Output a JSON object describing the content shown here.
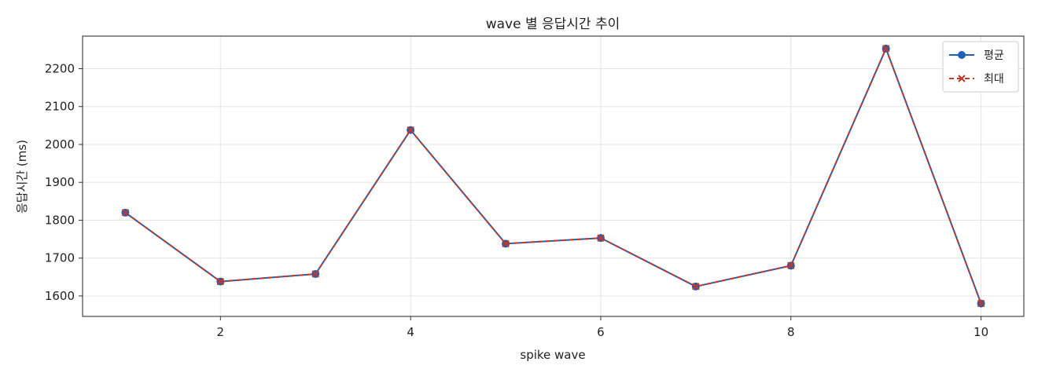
{
  "chart_data": {
    "type": "line",
    "title": "wave 별 응답시간 추이",
    "xlabel": "spike wave",
    "ylabel": "응답시간 (ms)",
    "x": [
      1,
      2,
      3,
      4,
      5,
      6,
      7,
      8,
      9,
      10
    ],
    "xlim": [
      0.55,
      10.45
    ],
    "ylim": [
      1546,
      2286
    ],
    "xticks": [
      2,
      4,
      6,
      8,
      10
    ],
    "yticks": [
      1600,
      1700,
      1800,
      1900,
      2000,
      2100,
      2200
    ],
    "grid": true,
    "legend_position": "top-right",
    "series": [
      {
        "name": "평균",
        "color": "#1f5fb4",
        "marker": "circle",
        "line_style": "solid",
        "values": [
          1820,
          1638,
          1658,
          2038,
          1738,
          1753,
          1625,
          1680,
          2253,
          1580
        ]
      },
      {
        "name": "최대",
        "color": "#c0392b",
        "marker": "x",
        "line_style": "dashed",
        "values": [
          1820,
          1638,
          1658,
          2038,
          1738,
          1753,
          1625,
          1680,
          2253,
          1580
        ]
      }
    ]
  }
}
